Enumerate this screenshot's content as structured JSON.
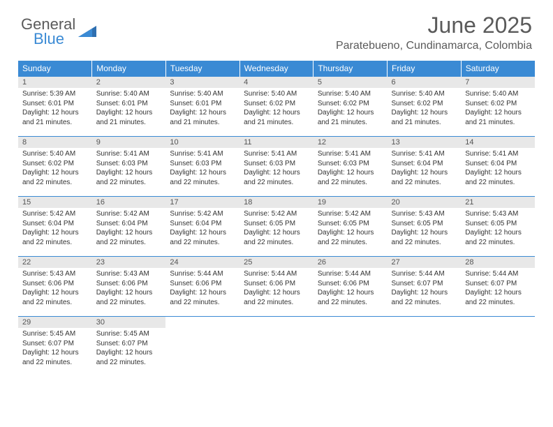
{
  "logo": {
    "line1": "General",
    "line2": "Blue"
  },
  "title": "June 2025",
  "location": "Paratebueno, Cundinamarca, Colombia",
  "colors": {
    "header_bg": "#3a8ad4",
    "header_fg": "#ffffff",
    "daynum_bg": "#e8e8e8",
    "text": "#333333",
    "muted": "#5a5a5a",
    "rule": "#3a8ad4"
  },
  "weekdays": [
    "Sunday",
    "Monday",
    "Tuesday",
    "Wednesday",
    "Thursday",
    "Friday",
    "Saturday"
  ],
  "days": [
    {
      "n": 1,
      "sunrise": "5:39 AM",
      "sunset": "6:01 PM",
      "daylight": "12 hours and 21 minutes."
    },
    {
      "n": 2,
      "sunrise": "5:40 AM",
      "sunset": "6:01 PM",
      "daylight": "12 hours and 21 minutes."
    },
    {
      "n": 3,
      "sunrise": "5:40 AM",
      "sunset": "6:01 PM",
      "daylight": "12 hours and 21 minutes."
    },
    {
      "n": 4,
      "sunrise": "5:40 AM",
      "sunset": "6:02 PM",
      "daylight": "12 hours and 21 minutes."
    },
    {
      "n": 5,
      "sunrise": "5:40 AM",
      "sunset": "6:02 PM",
      "daylight": "12 hours and 21 minutes."
    },
    {
      "n": 6,
      "sunrise": "5:40 AM",
      "sunset": "6:02 PM",
      "daylight": "12 hours and 21 minutes."
    },
    {
      "n": 7,
      "sunrise": "5:40 AM",
      "sunset": "6:02 PM",
      "daylight": "12 hours and 21 minutes."
    },
    {
      "n": 8,
      "sunrise": "5:40 AM",
      "sunset": "6:02 PM",
      "daylight": "12 hours and 22 minutes."
    },
    {
      "n": 9,
      "sunrise": "5:41 AM",
      "sunset": "6:03 PM",
      "daylight": "12 hours and 22 minutes."
    },
    {
      "n": 10,
      "sunrise": "5:41 AM",
      "sunset": "6:03 PM",
      "daylight": "12 hours and 22 minutes."
    },
    {
      "n": 11,
      "sunrise": "5:41 AM",
      "sunset": "6:03 PM",
      "daylight": "12 hours and 22 minutes."
    },
    {
      "n": 12,
      "sunrise": "5:41 AM",
      "sunset": "6:03 PM",
      "daylight": "12 hours and 22 minutes."
    },
    {
      "n": 13,
      "sunrise": "5:41 AM",
      "sunset": "6:04 PM",
      "daylight": "12 hours and 22 minutes."
    },
    {
      "n": 14,
      "sunrise": "5:41 AM",
      "sunset": "6:04 PM",
      "daylight": "12 hours and 22 minutes."
    },
    {
      "n": 15,
      "sunrise": "5:42 AM",
      "sunset": "6:04 PM",
      "daylight": "12 hours and 22 minutes."
    },
    {
      "n": 16,
      "sunrise": "5:42 AM",
      "sunset": "6:04 PM",
      "daylight": "12 hours and 22 minutes."
    },
    {
      "n": 17,
      "sunrise": "5:42 AM",
      "sunset": "6:04 PM",
      "daylight": "12 hours and 22 minutes."
    },
    {
      "n": 18,
      "sunrise": "5:42 AM",
      "sunset": "6:05 PM",
      "daylight": "12 hours and 22 minutes."
    },
    {
      "n": 19,
      "sunrise": "5:42 AM",
      "sunset": "6:05 PM",
      "daylight": "12 hours and 22 minutes."
    },
    {
      "n": 20,
      "sunrise": "5:43 AM",
      "sunset": "6:05 PM",
      "daylight": "12 hours and 22 minutes."
    },
    {
      "n": 21,
      "sunrise": "5:43 AM",
      "sunset": "6:05 PM",
      "daylight": "12 hours and 22 minutes."
    },
    {
      "n": 22,
      "sunrise": "5:43 AM",
      "sunset": "6:06 PM",
      "daylight": "12 hours and 22 minutes."
    },
    {
      "n": 23,
      "sunrise": "5:43 AM",
      "sunset": "6:06 PM",
      "daylight": "12 hours and 22 minutes."
    },
    {
      "n": 24,
      "sunrise": "5:44 AM",
      "sunset": "6:06 PM",
      "daylight": "12 hours and 22 minutes."
    },
    {
      "n": 25,
      "sunrise": "5:44 AM",
      "sunset": "6:06 PM",
      "daylight": "12 hours and 22 minutes."
    },
    {
      "n": 26,
      "sunrise": "5:44 AM",
      "sunset": "6:06 PM",
      "daylight": "12 hours and 22 minutes."
    },
    {
      "n": 27,
      "sunrise": "5:44 AM",
      "sunset": "6:07 PM",
      "daylight": "12 hours and 22 minutes."
    },
    {
      "n": 28,
      "sunrise": "5:44 AM",
      "sunset": "6:07 PM",
      "daylight": "12 hours and 22 minutes."
    },
    {
      "n": 29,
      "sunrise": "5:45 AM",
      "sunset": "6:07 PM",
      "daylight": "12 hours and 22 minutes."
    },
    {
      "n": 30,
      "sunrise": "5:45 AM",
      "sunset": "6:07 PM",
      "daylight": "12 hours and 22 minutes."
    }
  ],
  "labels": {
    "sunrise": "Sunrise:",
    "sunset": "Sunset:",
    "daylight": "Daylight:"
  },
  "grid": {
    "first_weekday_index": 0,
    "total_cells": 35
  }
}
